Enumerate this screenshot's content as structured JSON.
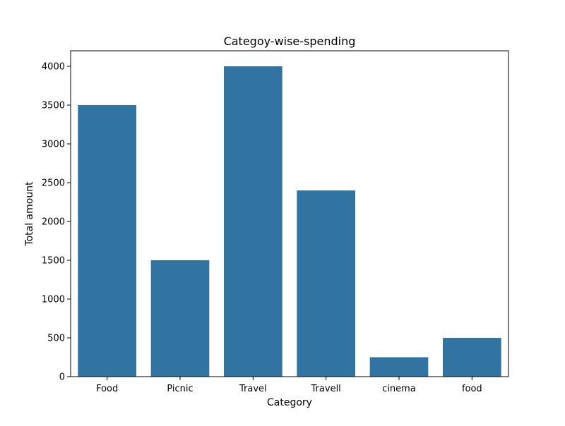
{
  "chart_data": {
    "type": "bar",
    "title": "Categoy-wise-spending",
    "xlabel": "Category",
    "ylabel": "Total amount",
    "categories": [
      "Food",
      "Picnic",
      "Travel",
      "Travell",
      "cinema",
      "food"
    ],
    "values": [
      3500,
      1500,
      4000,
      2400,
      250,
      500
    ],
    "ylim": [
      0,
      4200
    ],
    "yticks": [
      0,
      500,
      1000,
      1500,
      2000,
      2500,
      3000,
      3500,
      4000
    ],
    "bar_color": "#3274a1",
    "grid": false,
    "legend": "none"
  }
}
